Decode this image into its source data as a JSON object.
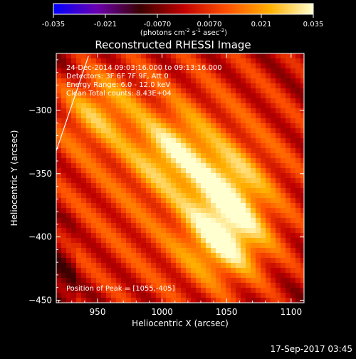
{
  "chart_data": {
    "type": "heatmap",
    "title": "Reconstructed RHESSI Image",
    "xlabel": "Heliocentric X (arcsec)",
    "ylabel": "Heliocentric Y (arcsec)",
    "xlim": [
      918,
      1110
    ],
    "ylim": [
      -452,
      -255
    ],
    "xticks": [
      950,
      1000,
      1050,
      1100
    ],
    "yticks": [
      -300,
      -350,
      -400,
      -450
    ],
    "colorbar": {
      "range": [
        -0.035,
        0.035
      ],
      "ticks": [
        "-0.035",
        "-0.021",
        "-0.0070",
        "0.0070",
        "0.021",
        "0.035"
      ],
      "label": "(photons cm",
      "label_exp1": "-2",
      "label_mid": " s",
      "label_exp2": "-1",
      "label_end": " asec",
      "label_exp3": "-2",
      "label_close": ")",
      "colors": [
        "#0000ff",
        "#6a00b0",
        "#3a0000",
        "#c00000",
        "#ff5000",
        "#ffb000",
        "#ffffd0"
      ]
    },
    "annotations": {
      "time": "24-Dec-2014 09:03:16.000 to 09:13:16.000",
      "detectors": "Detectors: 3F 6F 7F 9F, Att 0",
      "energy": "Energy Range: 6.0 - 12.0 keV",
      "clean": "Clean     Total counts: 8.43E+04",
      "peak": "Position of Peak = [1055,-405]"
    },
    "peak_position": [
      1055,
      -405
    ],
    "total_counts": "8.43E+04",
    "limb_line": [
      [
        918,
        -332
      ],
      [
        943,
        -257
      ]
    ],
    "emission_sources": [
      {
        "x": 1050,
        "y": -402,
        "intensity": 0.035
      },
      {
        "x": 1048,
        "y": -360,
        "intensity": 0.028
      },
      {
        "x": 1007,
        "y": -333,
        "intensity": 0.026
      },
      {
        "x": 950,
        "y": -300,
        "intensity": 0.022
      }
    ]
  },
  "footer": {
    "timestamp": "17-Sep-2017 03:45"
  }
}
